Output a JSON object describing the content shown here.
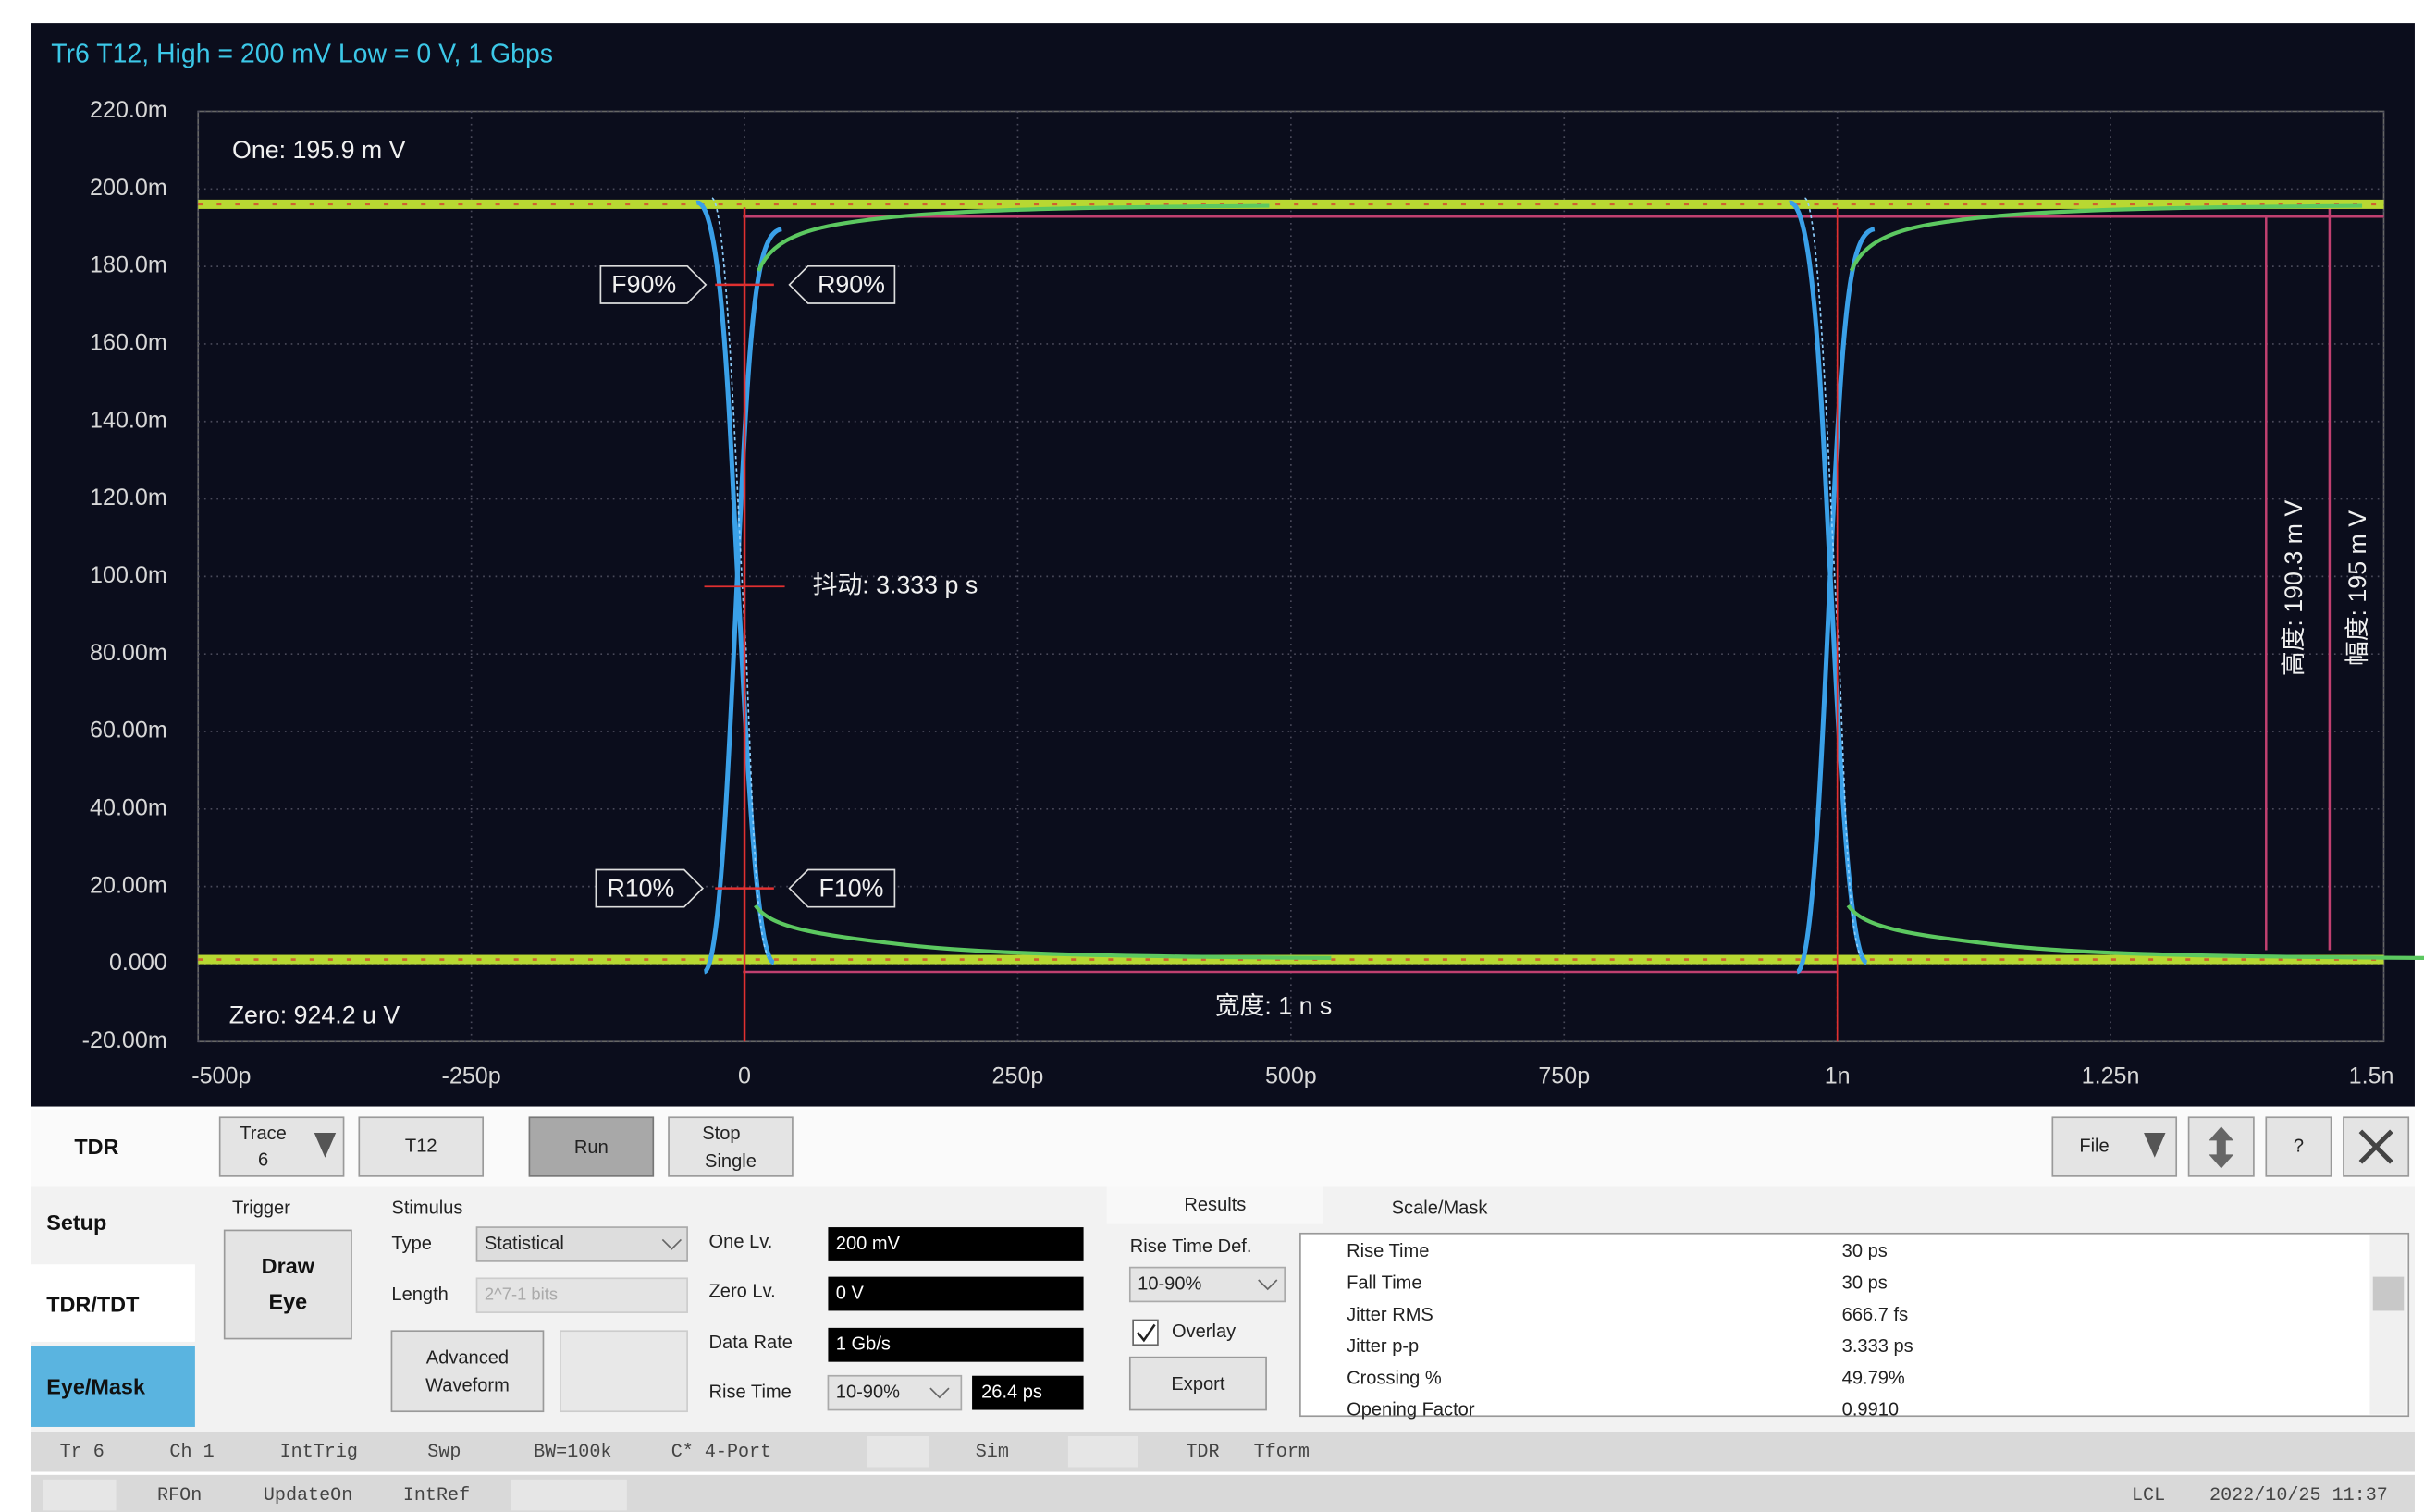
{
  "plot": {
    "title": "Tr6 T12, High = 200 mV Low = 0 V, 1 Gbps",
    "ylim": [
      -20,
      220
    ],
    "yticks": [
      {
        "value": 220,
        "label": "220.0m"
      },
      {
        "value": 200,
        "label": "200.0m"
      },
      {
        "value": 180,
        "label": "180.0m"
      },
      {
        "value": 160,
        "label": "160.0m"
      },
      {
        "value": 140,
        "label": "140.0m"
      },
      {
        "value": 120,
        "label": "120.0m"
      },
      {
        "value": 100,
        "label": "100.0m"
      },
      {
        "value": 80,
        "label": "80.00m"
      },
      {
        "value": 60,
        "label": "60.00m"
      },
      {
        "value": 40,
        "label": "40.00m"
      },
      {
        "value": 20,
        "label": "20.00m"
      },
      {
        "value": 0,
        "label": "0.000"
      },
      {
        "value": -20,
        "label": "-20.00m"
      }
    ],
    "xlim": [
      -500,
      1500
    ],
    "xticks": [
      {
        "value": -500,
        "label": "-500p"
      },
      {
        "value": -250,
        "label": "-250p"
      },
      0,
      {
        "value": 250,
        "label": "250p"
      },
      {
        "value": 500,
        "label": "500p"
      },
      {
        "value": 750,
        "label": "750p"
      },
      {
        "value": 1000,
        "label": "1n"
      },
      {
        "value": 1250,
        "label": "1.25n"
      },
      {
        "value": 1500,
        "label": "1.5n"
      }
    ],
    "annotations": {
      "one": "One: 195.9 m V",
      "zero": "Zero: 924.2 u V",
      "f90": "F90%",
      "r90": "R90%",
      "r10": "R10%",
      "f10": "F10%",
      "jitter": "抖动: 3.333 p s",
      "width": "宽度: 1 n s",
      "height": "高度: 190.3 m V",
      "amplitude": "幅度: 195 m V"
    }
  },
  "toolbar": {
    "mode": "TDR",
    "trace": [
      "Trace",
      "6"
    ],
    "t12": "T12",
    "run": "Run",
    "stop": [
      "Stop",
      "Single"
    ],
    "file": "File",
    "help": "?"
  },
  "tabs": [
    "Setup",
    "TDR/TDT",
    "Eye/Mask"
  ],
  "trigger": {
    "label": "Trigger",
    "button": [
      "Draw",
      "Eye"
    ]
  },
  "stimulus": {
    "label": "Stimulus",
    "type_label": "Type",
    "type_value": "Statistical",
    "length_label": "Length",
    "length_value": "2^7-1 bits",
    "advanced": [
      "Advanced",
      "Waveform"
    ]
  },
  "levels": {
    "one_label": "One Lv.",
    "one_value": "200 mV",
    "zero_label": "Zero Lv.",
    "zero_value": "0 V",
    "rate_label": "Data Rate",
    "rate_value": "1 Gb/s",
    "rise_label": "Rise Time",
    "rise_def": "10-90%",
    "rise_value": "26.4 ps"
  },
  "results_tabs": [
    "Results",
    "Scale/Mask"
  ],
  "rise_time_def": {
    "label": "Rise Time Def.",
    "value": "10-90%",
    "overlay": "Overlay",
    "export": "Export"
  },
  "results": [
    [
      "Rise Time",
      "30 ps"
    ],
    [
      "Fall Time",
      "30 ps"
    ],
    [
      "Jitter RMS",
      "666.7 fs"
    ],
    [
      "Jitter p-p",
      "3.333 ps"
    ],
    [
      "Crossing %",
      "49.79%"
    ],
    [
      "Opening Factor",
      "0.9910"
    ]
  ],
  "status_row1": [
    "Tr 6",
    "Ch 1",
    "IntTrig",
    "Swp",
    "BW=100k",
    "C* 4-Port",
    "Sim",
    "TDR",
    "Tform"
  ],
  "status_row2": [
    "RFOn",
    "UpdateOn",
    "IntRef",
    "LCL",
    "2022/10/25 11:37"
  ]
}
